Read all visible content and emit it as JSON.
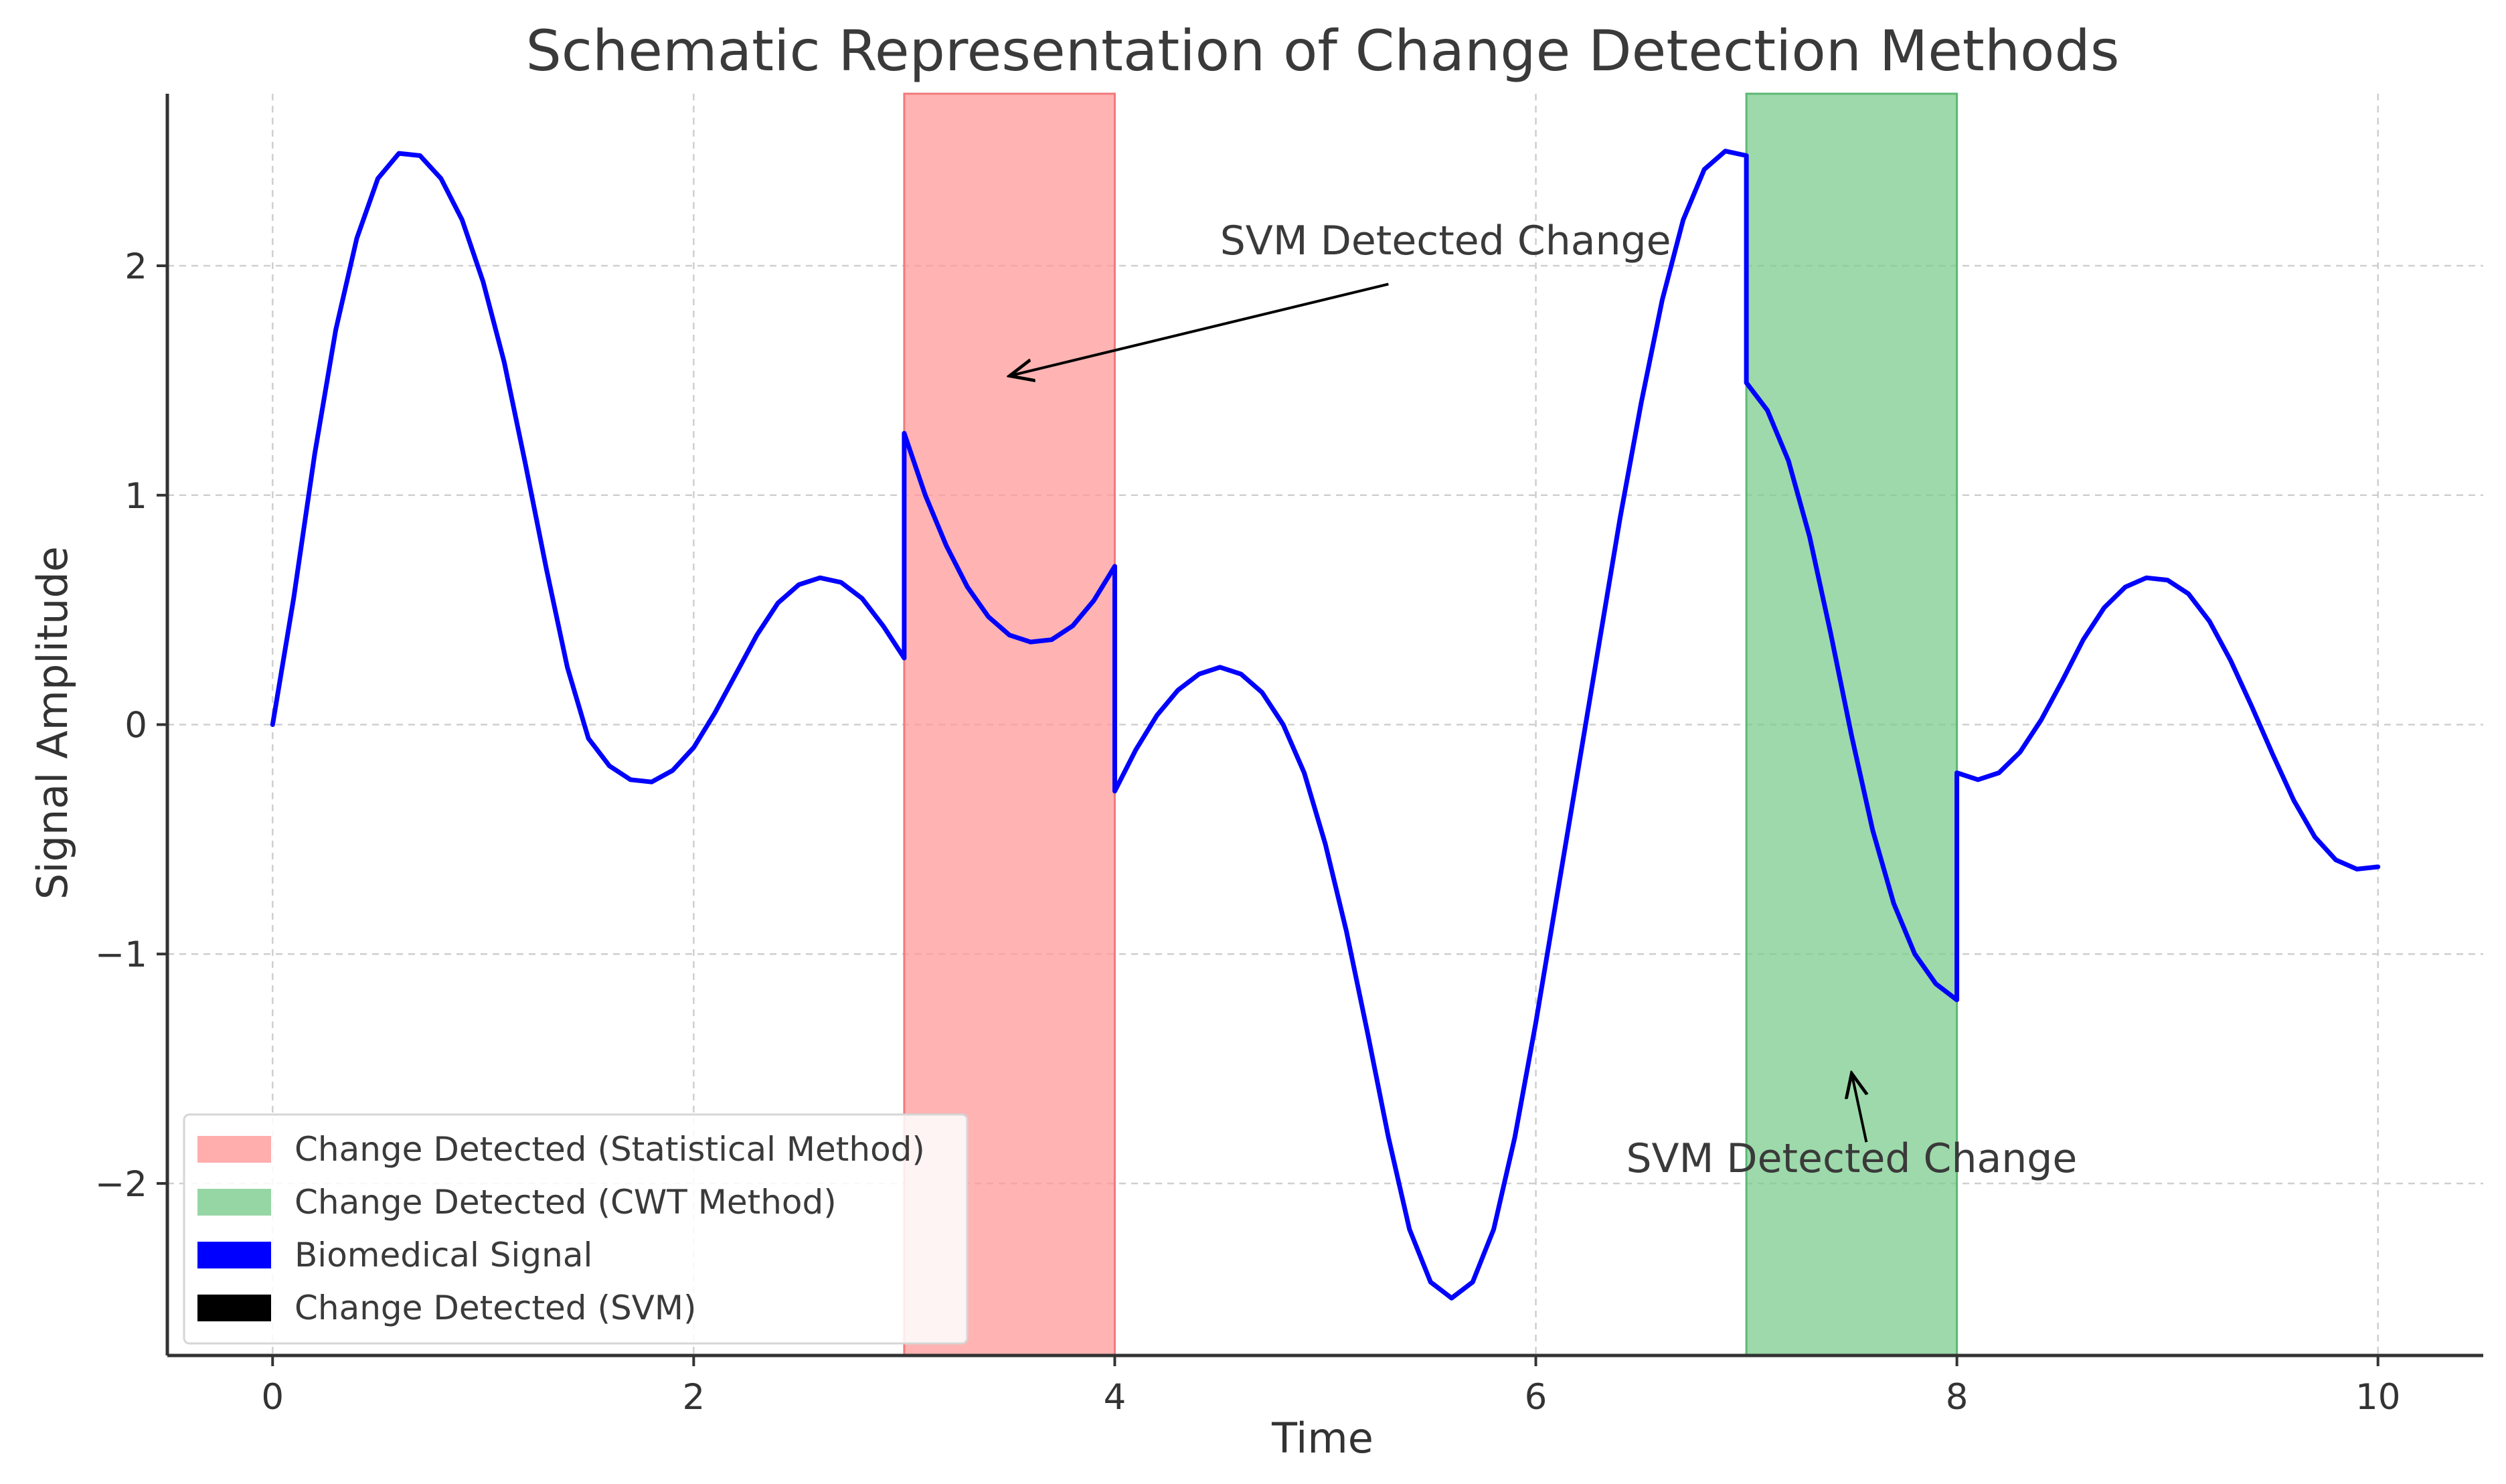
{
  "chart_data": {
    "type": "line",
    "title": "Schematic Representation of Change Detection Methods",
    "xlabel": "Time",
    "ylabel": "Signal Amplitude",
    "xlim": [
      -0.5,
      10.5
    ],
    "ylim": [
      -2.75,
      2.75
    ],
    "xticks": [
      0,
      2,
      4,
      6,
      8,
      10
    ],
    "yticks": [
      -2,
      -1,
      0,
      1,
      2
    ],
    "grid": true,
    "series": [
      {
        "name": "Biomedical Signal",
        "color": "#0000ff",
        "points": [
          [
            0,
            0
          ],
          [
            0.1,
            0.55
          ],
          [
            0.2,
            1.18
          ],
          [
            0.3,
            1.72
          ],
          [
            0.4,
            2.12
          ],
          [
            0.5,
            2.38
          ],
          [
            0.6,
            2.49
          ],
          [
            0.7,
            2.48
          ],
          [
            0.8,
            2.38
          ],
          [
            0.9,
            2.2
          ],
          [
            1.0,
            1.93
          ],
          [
            1.1,
            1.58
          ],
          [
            1.2,
            1.14
          ],
          [
            1.3,
            0.68
          ],
          [
            1.4,
            0.25
          ],
          [
            1.5,
            -0.06
          ],
          [
            1.6,
            -0.18
          ],
          [
            1.7,
            -0.24
          ],
          [
            1.8,
            -0.25
          ],
          [
            1.9,
            -0.2
          ],
          [
            2.0,
            -0.1
          ],
          [
            2.1,
            0.05
          ],
          [
            2.2,
            0.22
          ],
          [
            2.3,
            0.39
          ],
          [
            2.4,
            0.53
          ],
          [
            2.5,
            0.61
          ],
          [
            2.6,
            0.64
          ],
          [
            2.7,
            0.62
          ],
          [
            2.8,
            0.55
          ],
          [
            2.9,
            0.43
          ],
          [
            3.0,
            0.29
          ],
          [
            3.0,
            1.27
          ],
          [
            3.1,
            1.0
          ],
          [
            3.2,
            0.78
          ],
          [
            3.3,
            0.6
          ],
          [
            3.4,
            0.47
          ],
          [
            3.5,
            0.39
          ],
          [
            3.6,
            0.36
          ],
          [
            3.7,
            0.37
          ],
          [
            3.8,
            0.43
          ],
          [
            3.9,
            0.54
          ],
          [
            4.0,
            0.69
          ],
          [
            4.0,
            -0.29
          ],
          [
            4.1,
            -0.11
          ],
          [
            4.2,
            0.04
          ],
          [
            4.3,
            0.15
          ],
          [
            4.4,
            0.22
          ],
          [
            4.5,
            0.25
          ],
          [
            4.6,
            0.22
          ],
          [
            4.7,
            0.14
          ],
          [
            4.8,
            0.0
          ],
          [
            4.9,
            -0.21
          ],
          [
            5.0,
            -0.52
          ],
          [
            5.1,
            -0.9
          ],
          [
            5.2,
            -1.34
          ],
          [
            5.3,
            -1.8
          ],
          [
            5.4,
            -2.2
          ],
          [
            5.5,
            -2.43
          ],
          [
            5.6,
            -2.5
          ],
          [
            5.7,
            -2.43
          ],
          [
            5.8,
            -2.2
          ],
          [
            5.9,
            -1.8
          ],
          [
            6.0,
            -1.3
          ],
          [
            6.1,
            -0.75
          ],
          [
            6.2,
            -0.2
          ],
          [
            6.3,
            0.35
          ],
          [
            6.4,
            0.9
          ],
          [
            6.5,
            1.4
          ],
          [
            6.6,
            1.85
          ],
          [
            6.7,
            2.2
          ],
          [
            6.8,
            2.42
          ],
          [
            6.9,
            2.5
          ],
          [
            7.0,
            2.48
          ],
          [
            7.0,
            1.49
          ],
          [
            7.1,
            1.37
          ],
          [
            7.2,
            1.15
          ],
          [
            7.3,
            0.82
          ],
          [
            7.4,
            0.4
          ],
          [
            7.5,
            -0.05
          ],
          [
            7.6,
            -0.46
          ],
          [
            7.7,
            -0.78
          ],
          [
            7.8,
            -1.0
          ],
          [
            7.9,
            -1.13
          ],
          [
            8.0,
            -1.2
          ],
          [
            8.0,
            -0.21
          ],
          [
            8.1,
            -0.24
          ],
          [
            8.2,
            -0.21
          ],
          [
            8.3,
            -0.12
          ],
          [
            8.4,
            0.02
          ],
          [
            8.5,
            0.19
          ],
          [
            8.6,
            0.37
          ],
          [
            8.7,
            0.51
          ],
          [
            8.8,
            0.6
          ],
          [
            8.9,
            0.64
          ],
          [
            9.0,
            0.63
          ],
          [
            9.1,
            0.57
          ],
          [
            9.2,
            0.45
          ],
          [
            9.3,
            0.28
          ],
          [
            9.4,
            0.08
          ],
          [
            9.5,
            -0.13
          ],
          [
            9.6,
            -0.33
          ],
          [
            9.7,
            -0.49
          ],
          [
            9.8,
            -0.59
          ],
          [
            9.9,
            -0.63
          ],
          [
            10.0,
            -0.62
          ]
        ]
      }
    ],
    "spans": [
      {
        "name": "Change Detected (Statistical Method)",
        "x0": 3,
        "x1": 4,
        "color": "#ff9999",
        "edge": "#f07a7a"
      },
      {
        "name": "Change Detected (CWT Method)",
        "x0": 7,
        "x1": 8,
        "color": "#7ccc8e",
        "edge": "#5cb873"
      }
    ],
    "annotations": [
      {
        "text": "SVM Detected Change",
        "text_xy": [
          4.5,
          2.05
        ],
        "arrow_from": [
          5.3,
          1.92
        ],
        "arrow_to": [
          3.5,
          1.52
        ],
        "anchor": "start"
      },
      {
        "text": "SVM Detected Change",
        "text_xy": [
          7.5,
          -1.95
        ],
        "arrow_from": [
          7.57,
          -1.82
        ],
        "arrow_to": [
          7.5,
          -1.52
        ],
        "anchor": "middle"
      }
    ],
    "legend": {
      "position": "lower-left",
      "entries": [
        {
          "label": "Change Detected (Statistical Method)",
          "color": "#ff9999"
        },
        {
          "label": "Change Detected (CWT Method)",
          "color": "#7ccc8e"
        },
        {
          "label": "Biomedical Signal",
          "color": "#0000ff"
        },
        {
          "label": "Change Detected (SVM)",
          "color": "#000000"
        }
      ]
    }
  }
}
